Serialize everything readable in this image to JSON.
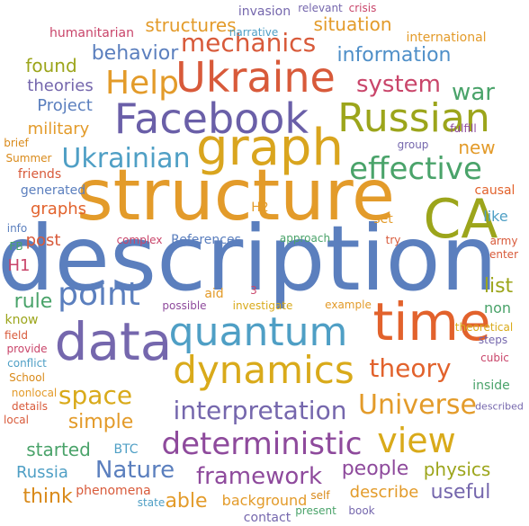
{
  "words": [
    {
      "text": "description",
      "color": "#5b7fbe"
    },
    {
      "text": "structure",
      "color": "#e39b2a"
    },
    {
      "text": "Facebook",
      "color": "#6a5fa8"
    },
    {
      "text": "graph",
      "color": "#d9a51e"
    },
    {
      "text": "Ukraine",
      "color": "#d85a3a"
    },
    {
      "text": "Russian",
      "color": "#9ca51b"
    },
    {
      "text": "data",
      "color": "#7567ad"
    },
    {
      "text": "time",
      "color": "#e2622c"
    },
    {
      "text": "quantum",
      "color": "#4f9fc5"
    },
    {
      "text": "dynamics",
      "color": "#d9aa1a"
    },
    {
      "text": "CA",
      "color": "#9ca51b"
    },
    {
      "text": "effective",
      "color": "#4aa36a"
    },
    {
      "text": "Ukrainian",
      "color": "#4f9fc5"
    },
    {
      "text": "point",
      "color": "#5b7fbe"
    },
    {
      "text": "Help",
      "color": "#e39b2a"
    },
    {
      "text": "view",
      "color": "#d9aa1a"
    },
    {
      "text": "deterministic",
      "color": "#8e4a9c"
    },
    {
      "text": "interpretation",
      "color": "#7567ad"
    },
    {
      "text": "Universe",
      "color": "#e39b2a"
    },
    {
      "text": "theory",
      "color": "#e2622c"
    },
    {
      "text": "space",
      "color": "#d9aa1a"
    },
    {
      "text": "mechanics",
      "color": "#d85a3a"
    },
    {
      "text": "framework",
      "color": "#8e4a9c"
    },
    {
      "text": "Nature",
      "color": "#5b7fbe"
    },
    {
      "text": "system",
      "color": "#c9456a"
    },
    {
      "text": "information",
      "color": "#4f8fc8"
    },
    {
      "text": "behavior",
      "color": "#5b7fbe"
    },
    {
      "text": "war",
      "color": "#4aa36a"
    },
    {
      "text": "structures",
      "color": "#e39b2a"
    },
    {
      "text": "simple",
      "color": "#e39b2a"
    },
    {
      "text": "people",
      "color": "#8e4a9c"
    },
    {
      "text": "useful",
      "color": "#7567ad"
    },
    {
      "text": "physics",
      "color": "#9ca51b"
    },
    {
      "text": "describe",
      "color": "#e39b2a"
    },
    {
      "text": "able",
      "color": "#e39b2a"
    },
    {
      "text": "think",
      "color": "#d98a1a"
    },
    {
      "text": "started",
      "color": "#4aa36a"
    },
    {
      "text": "Russia",
      "color": "#4f9fc5"
    },
    {
      "text": "list",
      "color": "#9ca51b"
    },
    {
      "text": "rule",
      "color": "#4aa36a"
    },
    {
      "text": "found",
      "color": "#9ca51b"
    },
    {
      "text": "situation",
      "color": "#e39b2a"
    },
    {
      "text": "new",
      "color": "#e39b2a"
    },
    {
      "text": "Project",
      "color": "#5b7fbe"
    },
    {
      "text": "military",
      "color": "#e39b2a"
    },
    {
      "text": "theories",
      "color": "#7567ad"
    },
    {
      "text": "graphs",
      "color": "#e2622c"
    },
    {
      "text": "post",
      "color": "#d85a3a"
    },
    {
      "text": "H1",
      "color": "#c9456a"
    },
    {
      "text": "References",
      "color": "#5b7fbe"
    },
    {
      "text": "background",
      "color": "#e39b2a"
    },
    {
      "text": "contact",
      "color": "#7567ad"
    },
    {
      "text": "phenomena",
      "color": "#d85a3a"
    },
    {
      "text": "BTC",
      "color": "#4f9fc5"
    },
    {
      "text": "international",
      "color": "#e39b2a"
    },
    {
      "text": "humanitarian",
      "color": "#c9456a"
    },
    {
      "text": "invasion",
      "color": "#7567ad"
    },
    {
      "text": "narrative",
      "color": "#4f9fc5"
    },
    {
      "text": "relevant",
      "color": "#7567ad"
    },
    {
      "text": "crisis",
      "color": "#c9456a"
    },
    {
      "text": "Summer",
      "color": "#d98a1a"
    },
    {
      "text": "friends",
      "color": "#d85a3a"
    },
    {
      "text": "generated",
      "color": "#5b7fbe"
    },
    {
      "text": "brief",
      "color": "#d98a1a"
    },
    {
      "text": "causal",
      "color": "#e2622c"
    },
    {
      "text": "like",
      "color": "#4f9fc5"
    },
    {
      "text": "set",
      "color": "#e39b2a"
    },
    {
      "text": "army",
      "color": "#d85a3a"
    },
    {
      "text": "non",
      "color": "#4aa36a"
    },
    {
      "text": "try",
      "color": "#d85a3a"
    },
    {
      "text": "approach",
      "color": "#4aa36a"
    },
    {
      "text": "complex",
      "color": "#c9456a"
    },
    {
      "text": "H2",
      "color": "#e39b2a"
    },
    {
      "text": "aid",
      "color": "#e39b2a"
    },
    {
      "text": "3",
      "color": "#c9456a"
    },
    {
      "text": "possible",
      "color": "#8e4a9c"
    },
    {
      "text": "investigate",
      "color": "#d9aa1a"
    },
    {
      "text": "example",
      "color": "#e39b2a"
    },
    {
      "text": "enter",
      "color": "#d85a3a"
    },
    {
      "text": "theoretical",
      "color": "#d9aa1a"
    },
    {
      "text": "steps",
      "color": "#7567ad"
    },
    {
      "text": "cubic",
      "color": "#c9456a"
    },
    {
      "text": "inside",
      "color": "#4aa36a"
    },
    {
      "text": "described",
      "color": "#7567ad"
    },
    {
      "text": "group",
      "color": "#7567ad"
    },
    {
      "text": "fulfill",
      "color": "#8e4a9c"
    },
    {
      "text": "info",
      "color": "#5b7fbe"
    },
    {
      "text": "FB",
      "color": "#4aa36a"
    },
    {
      "text": "know",
      "color": "#9ca51b"
    },
    {
      "text": "field",
      "color": "#d85a3a"
    },
    {
      "text": "provide",
      "color": "#c9456a"
    },
    {
      "text": "conflict",
      "color": "#4f9fc5"
    },
    {
      "text": "School",
      "color": "#d98a1a"
    },
    {
      "text": "nonlocal",
      "color": "#e39b2a"
    },
    {
      "text": "details",
      "color": "#d85a3a"
    },
    {
      "text": "local",
      "color": "#d85a3a"
    },
    {
      "text": "state",
      "color": "#4f9fc5"
    },
    {
      "text": "self",
      "color": "#d98a1a"
    },
    {
      "text": "present",
      "color": "#4aa36a"
    },
    {
      "text": "book",
      "color": "#7567ad"
    }
  ]
}
